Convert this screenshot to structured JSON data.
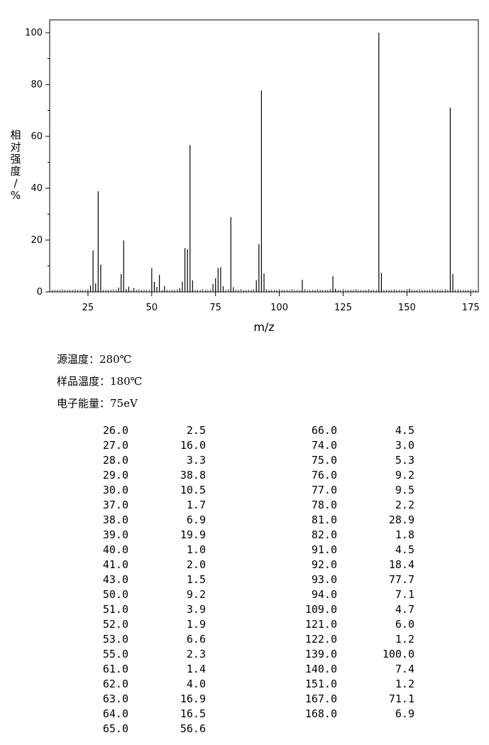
{
  "chart_data": {
    "type": "bar",
    "xlabel": "m/z",
    "ylabel": "相对强度/%",
    "xlim": [
      10,
      178
    ],
    "ylim": [
      0,
      100
    ],
    "xticks": [
      25,
      50,
      75,
      100,
      125,
      150,
      175
    ],
    "yticks": [
      0,
      20,
      40,
      60,
      80,
      100
    ],
    "series": [
      {
        "x": [
          26,
          27,
          28,
          29,
          30,
          37,
          38,
          39,
          40,
          41,
          43,
          50,
          51,
          52,
          53,
          55,
          61,
          62,
          63,
          64,
          65,
          66,
          74,
          75,
          76,
          77,
          78,
          81,
          82,
          91,
          92,
          93,
          94,
          109,
          121,
          122,
          139,
          140,
          151,
          167,
          168
        ],
        "values": [
          2.5,
          16.0,
          3.3,
          38.8,
          10.5,
          1.7,
          6.9,
          19.9,
          1.0,
          2.0,
          1.5,
          9.2,
          3.9,
          1.9,
          6.6,
          2.3,
          1.4,
          4.0,
          16.9,
          16.5,
          56.6,
          4.5,
          3.0,
          5.3,
          9.2,
          9.5,
          2.2,
          28.9,
          1.8,
          4.5,
          18.4,
          77.7,
          7.1,
          4.7,
          6.0,
          1.2,
          100.0,
          7.4,
          1.2,
          71.1,
          6.9
        ]
      }
    ]
  },
  "conditions": [
    {
      "label": "源温度：",
      "value": "280℃"
    },
    {
      "label": "样品温度：",
      "value": "180℃"
    },
    {
      "label": "电子能量：",
      "value": "75eV"
    }
  ],
  "peak_table": {
    "left": [
      [
        "26.0",
        "2.5"
      ],
      [
        "27.0",
        "16.0"
      ],
      [
        "28.0",
        "3.3"
      ],
      [
        "29.0",
        "38.8"
      ],
      [
        "30.0",
        "10.5"
      ],
      [
        "37.0",
        "1.7"
      ],
      [
        "38.0",
        "6.9"
      ],
      [
        "39.0",
        "19.9"
      ],
      [
        "40.0",
        "1.0"
      ],
      [
        "41.0",
        "2.0"
      ],
      [
        "43.0",
        "1.5"
      ],
      [
        "50.0",
        "9.2"
      ],
      [
        "51.0",
        "3.9"
      ],
      [
        "52.0",
        "1.9"
      ],
      [
        "53.0",
        "6.6"
      ],
      [
        "55.0",
        "2.3"
      ],
      [
        "61.0",
        "1.4"
      ],
      [
        "62.0",
        "4.0"
      ],
      [
        "63.0",
        "16.9"
      ],
      [
        "64.0",
        "16.5"
      ],
      [
        "65.0",
        "56.6"
      ]
    ],
    "right": [
      [
        "66.0",
        "4.5"
      ],
      [
        "74.0",
        "3.0"
      ],
      [
        "75.0",
        "5.3"
      ],
      [
        "76.0",
        "9.2"
      ],
      [
        "77.0",
        "9.5"
      ],
      [
        "78.0",
        "2.2"
      ],
      [
        "81.0",
        "28.9"
      ],
      [
        "82.0",
        "1.8"
      ],
      [
        "91.0",
        "4.5"
      ],
      [
        "92.0",
        "18.4"
      ],
      [
        "93.0",
        "77.7"
      ],
      [
        "94.0",
        "7.1"
      ],
      [
        "109.0",
        "4.7"
      ],
      [
        "121.0",
        "6.0"
      ],
      [
        "122.0",
        "1.2"
      ],
      [
        "139.0",
        "100.0"
      ],
      [
        "140.0",
        "7.4"
      ],
      [
        "151.0",
        "1.2"
      ],
      [
        "167.0",
        "71.1"
      ],
      [
        "168.0",
        "6.9"
      ]
    ]
  }
}
